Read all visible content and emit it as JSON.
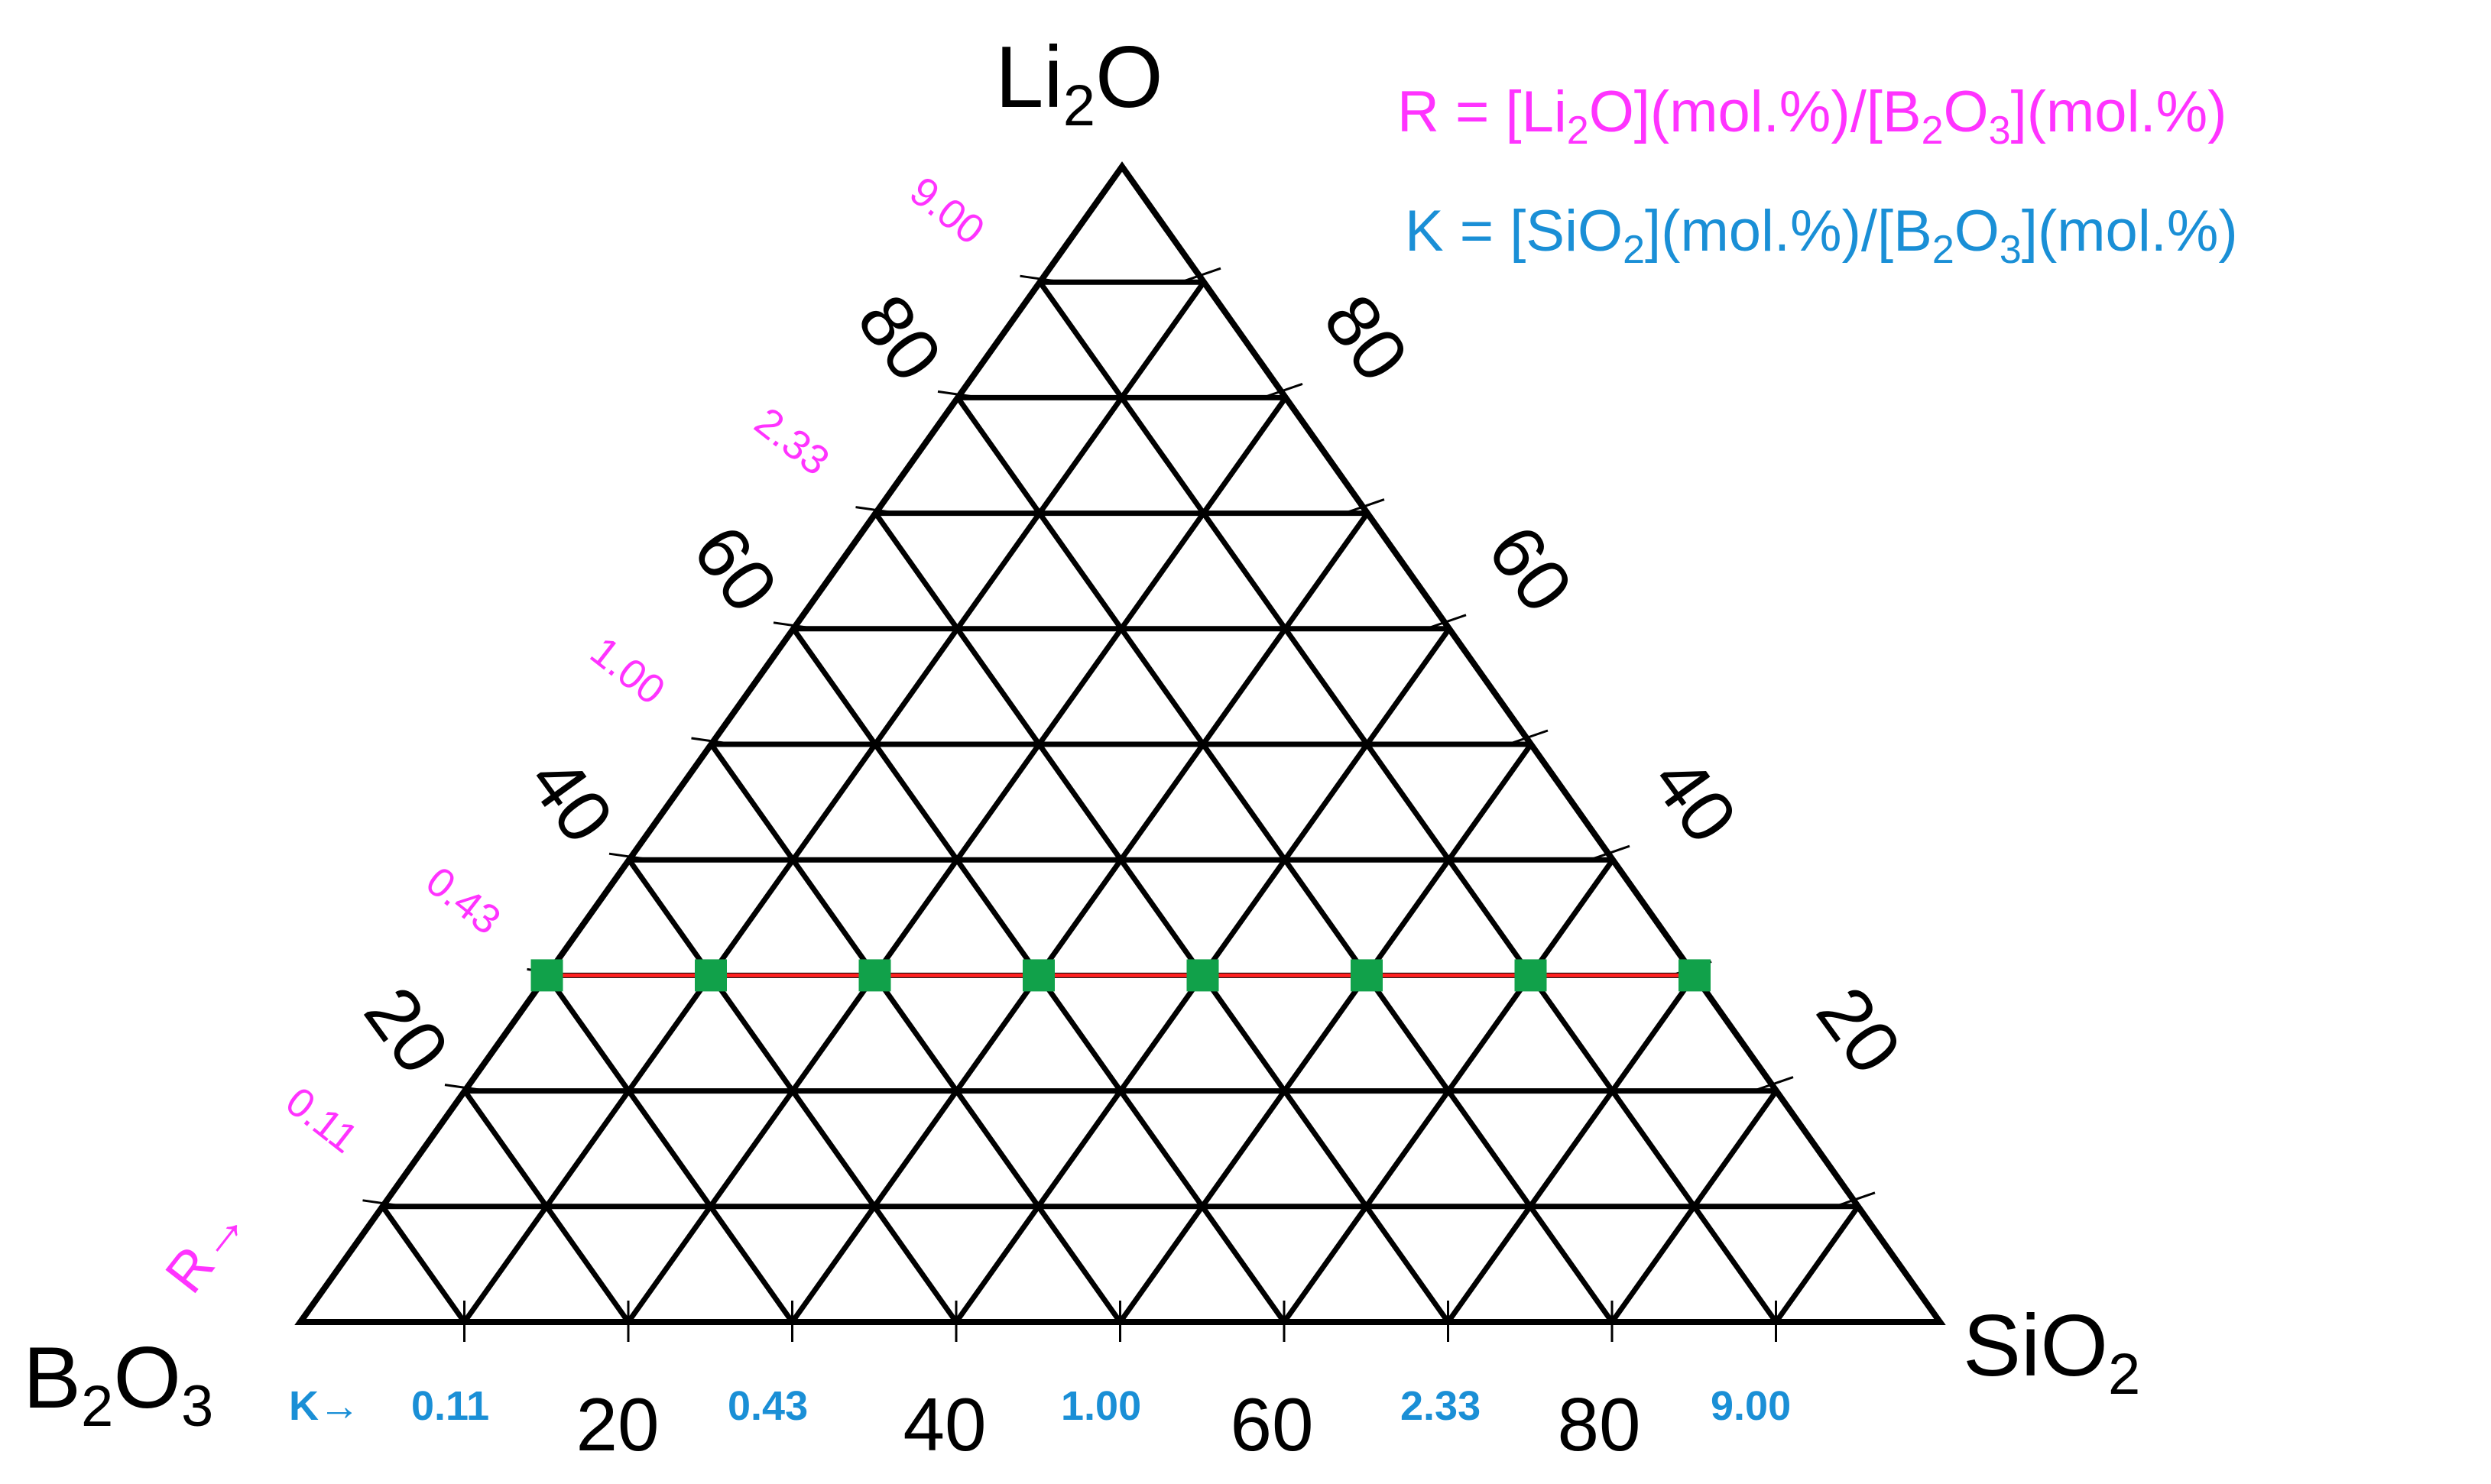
{
  "vertices": {
    "top": {
      "main": "Li",
      "sub": "2",
      "tail": "O"
    },
    "left": {
      "main": "B",
      "sub1": "2",
      "mid": "O",
      "sub2": "3"
    },
    "right": {
      "main": "SiO",
      "sub": "2"
    }
  },
  "legend": {
    "r_line": {
      "pre": "R = [Li",
      "sub1": "2",
      "mid1": "O](mol.%)/[B",
      "sub2": "2",
      "mid2": "O",
      "sub3": "3",
      "post": "](mol.%)"
    },
    "k_line": {
      "pre": "K = [SiO",
      "sub1": "2",
      "mid1": "](mol.%)/[B",
      "sub2": "2",
      "mid2": "O",
      "sub3": "3",
      "post": "](mol.%)"
    }
  },
  "r_axis": {
    "arrow_label": "R→",
    "ticks": [
      "0.11",
      "0.43",
      "1.00",
      "2.33",
      "9.00"
    ]
  },
  "k_axis": {
    "arrow_label": "K→",
    "ticks": [
      "0.11",
      "0.43",
      "1.00",
      "2.33",
      "9.00"
    ]
  },
  "scales": {
    "bottom": [
      "20",
      "40",
      "60",
      "80"
    ],
    "left": [
      "20",
      "40",
      "60",
      "80"
    ],
    "right": [
      "20",
      "40",
      "60",
      "80"
    ]
  },
  "grid_step_percent": 10,
  "series_line": {
    "li2o_percent": 30
  },
  "sample_points": [
    {
      "li2o": 30,
      "sio2": 0
    },
    {
      "li2o": 30,
      "sio2": 10
    },
    {
      "li2o": 30,
      "sio2": 20
    },
    {
      "li2o": 30,
      "sio2": 30
    },
    {
      "li2o": 30,
      "sio2": 40
    },
    {
      "li2o": 30,
      "sio2": 50
    },
    {
      "li2o": 30,
      "sio2": 60
    },
    {
      "li2o": 30,
      "sio2": 70
    }
  ],
  "colors": {
    "grid": "#000000",
    "r_labels": "#ff33ff",
    "k_labels": "#1a8fd6",
    "series_line": "#ff2020",
    "points": "#11a14a"
  }
}
